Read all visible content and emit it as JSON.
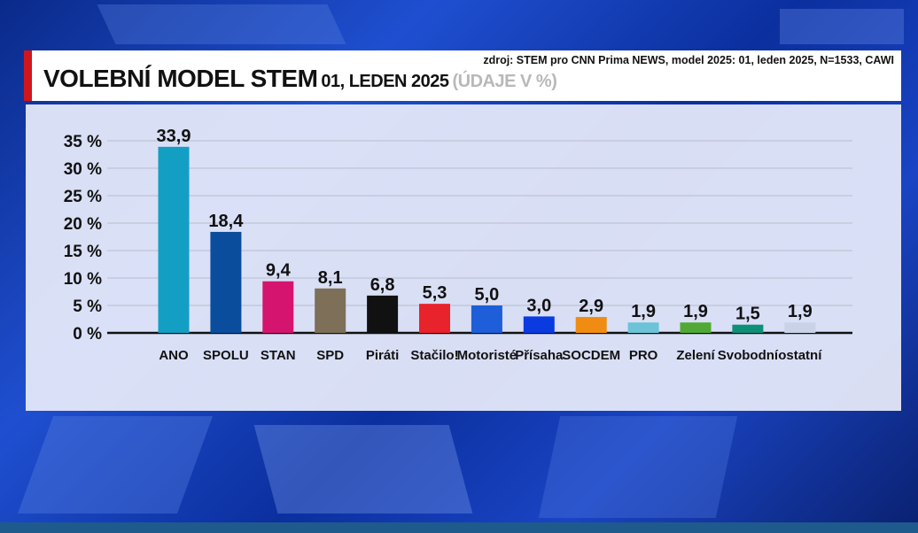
{
  "header": {
    "title_main": "VOLEBNÍ MODEL STEM",
    "title_date": "01, LEDEN 2025",
    "title_unit": "(ÚDAJE V %)",
    "source": "zdroj: STEM pro CNN Prima NEWS, model 2025: 01, leden 2025, N=1533, CAWI"
  },
  "colors": {
    "accent_red": "#d0161c",
    "panel_bg": "#e8ecfa"
  },
  "chart_data": {
    "type": "bar",
    "title": "VOLEBNÍ MODEL STEM 01, LEDEN 2025 (ÚDAJE V %)",
    "xlabel": "",
    "ylabel": "",
    "ylim": [
      0,
      35
    ],
    "yticks": [
      "0 %",
      "5 %",
      "10 %",
      "15 %",
      "20 %",
      "25 %",
      "30 %",
      "35 %"
    ],
    "grid": true,
    "categories": [
      "ANO",
      "SPOLU",
      "STAN",
      "SPD",
      "Piráti",
      "Stačilo!",
      "Motoristé",
      "Přísaha",
      "SOCDEM",
      "PRO",
      "Zelení",
      "Svobodní",
      "ostatní"
    ],
    "values": [
      33.9,
      18.4,
      9.4,
      8.1,
      6.8,
      5.3,
      5.0,
      3.0,
      2.9,
      1.9,
      1.9,
      1.5,
      1.9
    ],
    "value_labels": [
      "33,9",
      "18,4",
      "9,4",
      "8,1",
      "6,8",
      "5,3",
      "5,0",
      "3,0",
      "2,9",
      "1,9",
      "1,9",
      "1,5",
      "1,9"
    ],
    "colors": [
      "#139fc4",
      "#0a4d9c",
      "#d4146e",
      "#7d6f58",
      "#111111",
      "#e8232b",
      "#1e5ed8",
      "#0a3be0",
      "#f08c12",
      "#6cc3d8",
      "#52a834",
      "#0e8f78",
      "#c9d2e6"
    ]
  }
}
